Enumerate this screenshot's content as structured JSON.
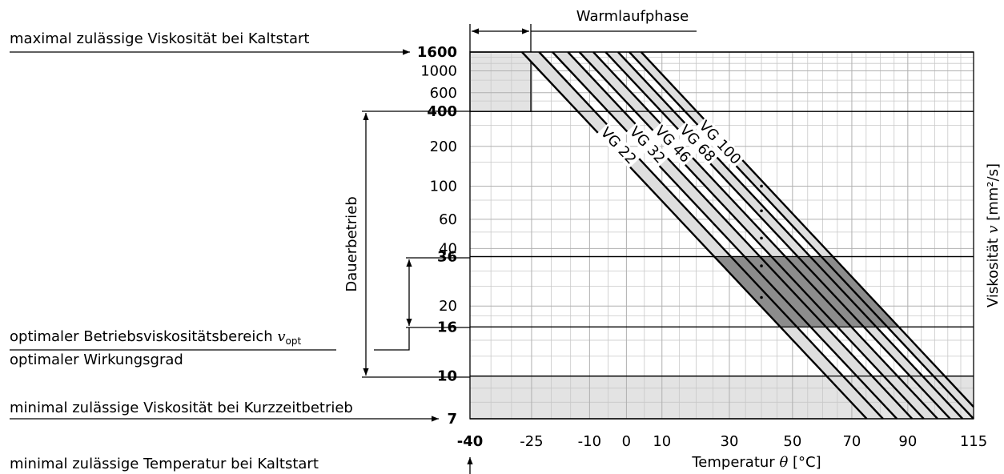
{
  "chart_data": {
    "type": "line",
    "xscale": "log-kelvin",
    "yscale": "ubbelohde-walther",
    "xlabel": {
      "text": "Temperatur",
      "symbol": "θ",
      "unit": "[°C]"
    },
    "ylabel": {
      "text": "Viskosität",
      "symbol": "v",
      "unit": "[mm²/s]"
    },
    "xlim": [
      -40,
      115
    ],
    "xticks": [
      -40,
      -25,
      -10,
      0,
      10,
      30,
      50,
      70,
      90,
      115
    ],
    "xticks_bold": [
      -40
    ],
    "ylim": [
      7,
      1600
    ],
    "yticks": [
      1600,
      1000,
      600,
      400,
      200,
      100,
      60,
      40,
      36,
      20,
      16,
      10,
      7
    ],
    "yticks_bold": [
      1600,
      400,
      36,
      16,
      10,
      7
    ],
    "minor_xgrid": [
      -35,
      -30,
      -20,
      -15,
      -5,
      5,
      15,
      20,
      25,
      35,
      40,
      45,
      55,
      60,
      65,
      75,
      80,
      85,
      95,
      100,
      105,
      110
    ],
    "minor_ygrid": [
      1400,
      1200,
      800,
      500,
      300,
      150,
      80,
      50,
      30,
      25,
      18,
      14,
      12,
      9,
      8
    ],
    "grid": true,
    "color": "#000000",
    "band_color": "#dedede",
    "optimal_color": "#8c8c8c",
    "limit_color": "#e3e3e3",
    "nominal_x": 40,
    "series": [
      {
        "name": "VG 22",
        "nominal": 22,
        "lower": {
          "x": [
            -27.4,
            75.2
          ],
          "values": [
            1600,
            7
          ]
        },
        "upper": {
          "x": [
            -23.1,
            81.0
          ],
          "values": [
            1600,
            7
          ]
        }
      },
      {
        "name": "VG 32",
        "nominal": 32,
        "lower": {
          "x": [
            -19.7,
            86.0
          ],
          "values": [
            1600,
            7
          ]
        },
        "upper": {
          "x": [
            -15.7,
            91.6
          ],
          "values": [
            1600,
            7
          ]
        }
      },
      {
        "name": "VG 46",
        "nominal": 46,
        "lower": {
          "x": [
            -12.7,
            95.9
          ],
          "values": [
            1600,
            7
          ]
        },
        "upper": {
          "x": [
            -9.0,
            101.1
          ],
          "values": [
            1600,
            7
          ]
        }
      },
      {
        "name": "VG 68",
        "nominal": 68,
        "lower": {
          "x": [
            -5.7,
            105.9
          ],
          "values": [
            1600,
            7
          ]
        },
        "upper": {
          "x": [
            -2.3,
            110.7
          ],
          "values": [
            1600,
            7
          ]
        }
      },
      {
        "name": "VG 100",
        "nominal": 100,
        "lower": {
          "x": [
            0.8,
            115
          ],
          "values": [
            1600,
            7
          ]
        },
        "upper": {
          "x": [
            4.1,
            115
          ],
          "values": [
            1600,
            7.7
          ]
        }
      }
    ],
    "regions": {
      "cold_start": {
        "x": [
          -40,
          -25
        ],
        "y": [
          400,
          1600
        ]
      },
      "short_term": {
        "x": [
          -40,
          115
        ],
        "y": [
          7,
          10
        ]
      },
      "optimal": {
        "y": [
          16,
          36
        ]
      }
    },
    "annotations": {
      "max_viscosity": "maximal zulässige Viskosität bei Kaltstart",
      "warmup": "Warmlaufphase",
      "continuous": "Dauerbetrieb",
      "optimal_range": "optimaler Betriebsviskositätsbereich",
      "optimal_symbol": "v",
      "optimal_subscript": "opt",
      "optimal_efficiency": "optimaler Wirkungsgrad",
      "min_viscosity": "minimal zulässige Viskosität bei Kurzzeitbetrieb",
      "min_temperature": "minimal zulässige Temperatur bei Kaltstart"
    }
  }
}
